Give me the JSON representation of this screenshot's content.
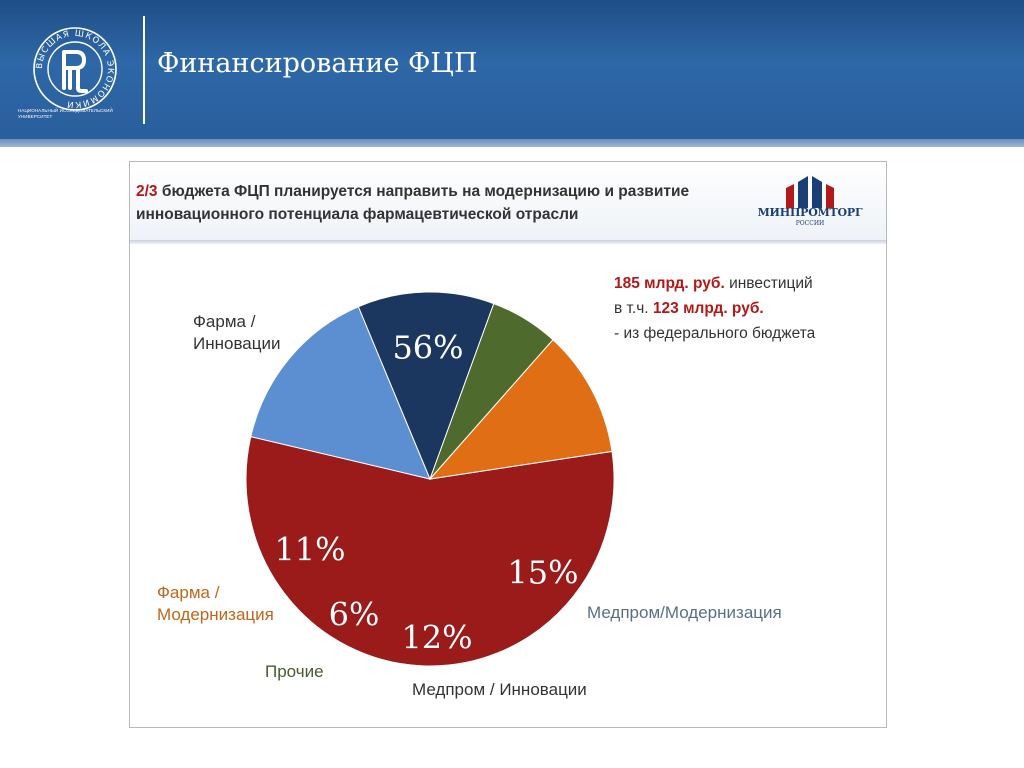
{
  "header": {
    "title": "Финансирование ФЦП",
    "logo_caption": "НАЦИОНАЛЬНЫЙ ИССЛЕДОВАТЕЛЬСКИЙ УНИВЕРСИТЕТ",
    "logo_ring_text": "ВЫСШАЯ ШКОЛА ЭКОНОМИКИ",
    "colors": {
      "band": "#2a5e9c",
      "stripe": "#9fb6d4"
    }
  },
  "panel": {
    "headline_accent": "2/3",
    "headline_rest": " бюджета ФЦП планируется направить на модернизацию и развитие инновационного потенциала фармацевтической отрасли",
    "ministry_name": "МИНПРОМТОРГ",
    "ministry_sub": "РОССИИ",
    "note": {
      "line1_strong": "185 млрд. руб.",
      "line1_rest": " инвестиций",
      "line2_prefix": "в т.ч. ",
      "line2_strong": "123 млрд. руб.",
      "line3": "- из федерального бюджета"
    }
  },
  "chart_data": {
    "type": "pie",
    "title": "",
    "slices": [
      {
        "label": "Фарма / Инновации",
        "label_lines": [
          "Фарма /",
          "Инновации"
        ],
        "value": 56,
        "display": "56%",
        "color": "#9b1a1a",
        "label_color": "#333333"
      },
      {
        "label": "Медпром/Модернизация",
        "label_lines": [
          "Медпром/Модернизация"
        ],
        "value": 15,
        "display": "15%",
        "color": "#5b8fd1",
        "label_color": "#5a6f86"
      },
      {
        "label": "Медпром / Инновации",
        "label_lines": [
          "Медпром / Инновации"
        ],
        "value": 12,
        "display": "12%",
        "color": "#1b365f",
        "label_color": "#333333"
      },
      {
        "label": "Прочие",
        "label_lines": [
          "Прочие"
        ],
        "value": 6,
        "display": "6%",
        "color": "#4f6a2d",
        "label_color": "#4a5a2a"
      },
      {
        "label": "Фарма / Модернизация",
        "label_lines": [
          "Фарма /",
          "Модернизация"
        ],
        "value": 11,
        "display": "11%",
        "color": "#e06e14",
        "label_color": "#c0661a"
      }
    ]
  }
}
